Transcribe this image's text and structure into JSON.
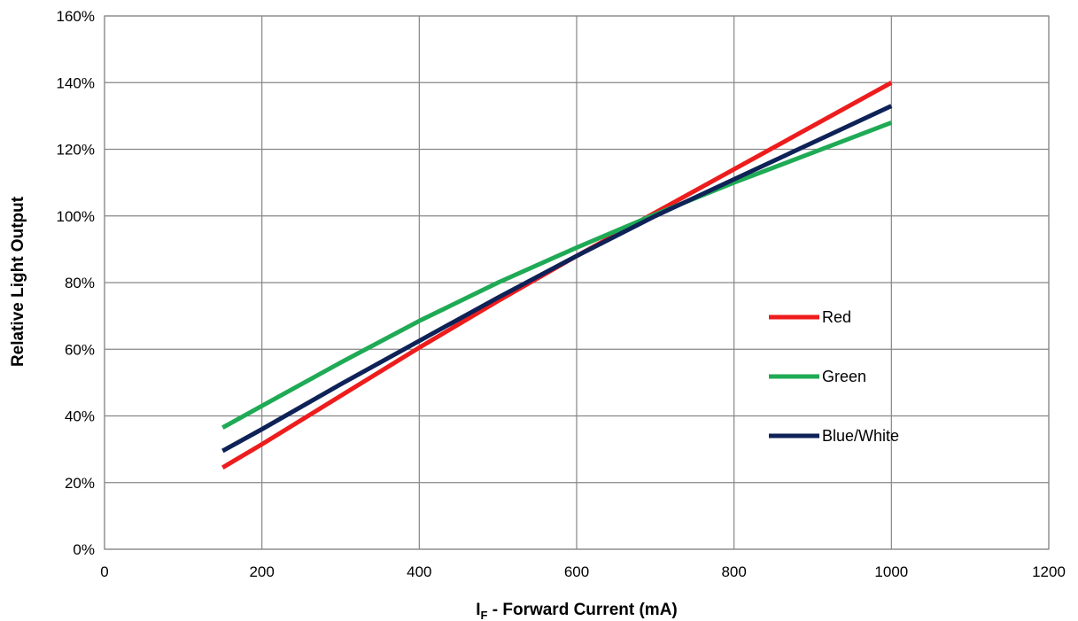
{
  "chart_data": {
    "type": "line",
    "title": "",
    "xlabel": {
      "main": "I",
      "sub": "F",
      "rest": " - Forward Current (mA)"
    },
    "ylabel": "Relative Light Output",
    "xlim": [
      0,
      1200
    ],
    "ylim": [
      0,
      160
    ],
    "x_ticks": [
      0,
      200,
      400,
      600,
      800,
      1000,
      1200
    ],
    "y_ticks": [
      0,
      20,
      40,
      60,
      80,
      100,
      120,
      140,
      160
    ],
    "y_tick_labels": [
      "0%",
      "20%",
      "40%",
      "60%",
      "80%",
      "100%",
      "120%",
      "140%",
      "160%"
    ],
    "grid": true,
    "legend_position": "right-middle",
    "series": [
      {
        "name": "Red",
        "color": "#ee1c1c",
        "x": [
          150,
          200,
          300,
          400,
          500,
          600,
          700,
          800,
          900,
          1000
        ],
        "y": [
          24.5,
          31.5,
          46,
          60.5,
          74.5,
          88,
          101,
          114,
          127,
          140
        ]
      },
      {
        "name": "Green",
        "color": "#1faa55",
        "x": [
          150,
          200,
          300,
          400,
          500,
          600,
          700,
          800,
          900,
          1000
        ],
        "y": [
          36.5,
          43,
          56,
          68.5,
          80,
          90.5,
          100.5,
          110,
          119,
          128
        ]
      },
      {
        "name": "Blue/White",
        "color": "#0e2258",
        "x": [
          150,
          200,
          300,
          400,
          500,
          600,
          700,
          800,
          900,
          1000
        ],
        "y": [
          29.5,
          36,
          49.5,
          62.5,
          75.5,
          88,
          100,
          111,
          122,
          133
        ]
      }
    ]
  }
}
